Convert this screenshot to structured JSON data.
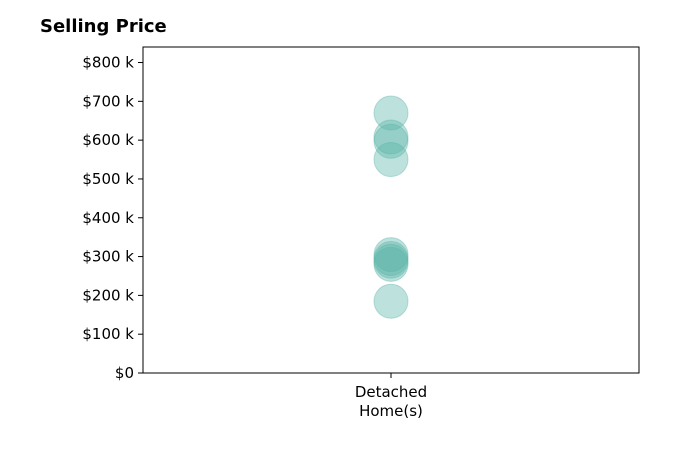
{
  "chart_data": {
    "type": "scatter",
    "title": "Selling Price",
    "xlabel": "",
    "ylabel": "",
    "categories": [
      [
        "Detached",
        "Home(s)"
      ]
    ],
    "yticks": [
      0,
      100000,
      200000,
      300000,
      400000,
      500000,
      600000,
      700000,
      800000
    ],
    "ytick_labels": [
      "$0",
      "$100 k",
      "$200 k",
      "$300 k",
      "$400 k",
      "$500 k",
      "$600 k",
      "$700 k",
      "$800 k"
    ],
    "ylim": [
      0,
      840000
    ],
    "grid": false,
    "marker_color": "#5ab4a8",
    "marker_opacity": 0.4,
    "series": [
      {
        "category_index": 0,
        "values": [
          670000,
          608000,
          597000,
          550000,
          305000,
          295000,
          288000,
          280000,
          185000
        ]
      }
    ]
  }
}
